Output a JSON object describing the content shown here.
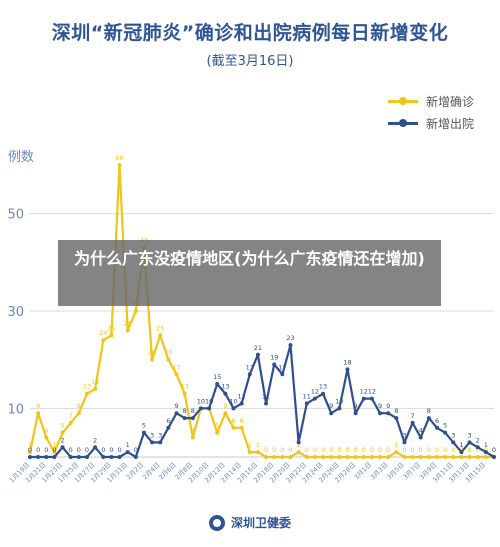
{
  "header": {
    "title": "深圳“新冠肺炎”确诊和出院病例每日新增变化",
    "subtitle": "(截至3月16日)"
  },
  "overlay": {
    "banner_text": "为什么广东没疫情地区(为什么广东疫情还在增加)"
  },
  "footer": {
    "source": "深圳卫健委"
  },
  "chart_data": {
    "type": "line",
    "ylabel": "例数",
    "ylim": [
      0,
      60
    ],
    "yticks": [
      10,
      30,
      50
    ],
    "grid": true,
    "legend_position": "top-right",
    "categories": [
      "1月19日",
      "1月20日",
      "1月21日",
      "1月22日",
      "1月23日",
      "1月24日",
      "1月25日",
      "1月26日",
      "1月27日",
      "1月28日",
      "1月29日",
      "1月30日",
      "1月31日",
      "2月1日",
      "2月2日",
      "2月3日",
      "2月4日",
      "2月5日",
      "2月6日",
      "2月7日",
      "2月8日",
      "2月9日",
      "2月10日",
      "2月11日",
      "2月12日",
      "2月13日",
      "2月14日",
      "2月15日",
      "2月16日",
      "2月17日",
      "2月18日",
      "2月19日",
      "2月20日",
      "2月21日",
      "2月22日",
      "2月23日",
      "2月24日",
      "2月25日",
      "2月26日",
      "2月27日",
      "2月28日",
      "2月29日",
      "3月1日",
      "3月2日",
      "3月3日",
      "3月4日",
      "3月5日",
      "3月6日",
      "3月7日",
      "3月8日",
      "3月9日",
      "3月10日",
      "3月11日",
      "3月12日",
      "3月13日",
      "3月14日",
      "3月15日",
      "3月16日"
    ],
    "xtick_labels": [
      "1月19日",
      "1月21日",
      "1月23日",
      "1月25日",
      "1月27日",
      "1月29日",
      "1月31日",
      "2月2日",
      "2月4日",
      "2月6日",
      "2月8日",
      "2月10日",
      "2月12日",
      "2月14日",
      "2月16日",
      "2月18日",
      "2月20日",
      "2月22日",
      "2月24日",
      "2月26日",
      "2月28日",
      "3月1日",
      "3月3日",
      "3月5日",
      "3月7日",
      "3月9日",
      "3月11日",
      "3月13日",
      "3月15日"
    ],
    "series": [
      {
        "name": "新增确诊",
        "color": "#f0c419",
        "values": [
          1,
          9,
          4,
          1,
          5,
          7,
          9,
          13,
          14,
          24,
          25,
          60,
          26,
          30,
          43,
          20,
          25,
          20,
          17,
          13,
          4,
          10,
          10,
          5,
          9,
          6,
          6,
          1,
          1,
          0,
          0,
          0,
          0,
          1,
          0,
          0,
          0,
          0,
          0,
          0,
          0,
          0,
          0,
          0,
          0,
          1,
          0,
          0,
          0,
          0,
          0,
          0,
          0,
          0,
          0,
          0,
          0,
          0
        ]
      },
      {
        "name": "新增出院",
        "color": "#2f4f8f",
        "values": [
          0,
          0,
          0,
          0,
          2,
          0,
          0,
          0,
          2,
          0,
          0,
          0,
          1,
          0,
          5,
          3,
          3,
          6,
          9,
          8,
          8,
          10,
          10,
          15,
          13,
          10,
          11,
          17,
          21,
          11,
          19,
          17,
          23,
          3,
          11,
          12,
          13,
          9,
          10,
          18,
          9,
          12,
          12,
          9,
          9,
          8,
          3,
          7,
          4,
          8,
          6,
          5,
          3,
          1,
          3,
          2,
          1,
          0
        ]
      }
    ]
  }
}
